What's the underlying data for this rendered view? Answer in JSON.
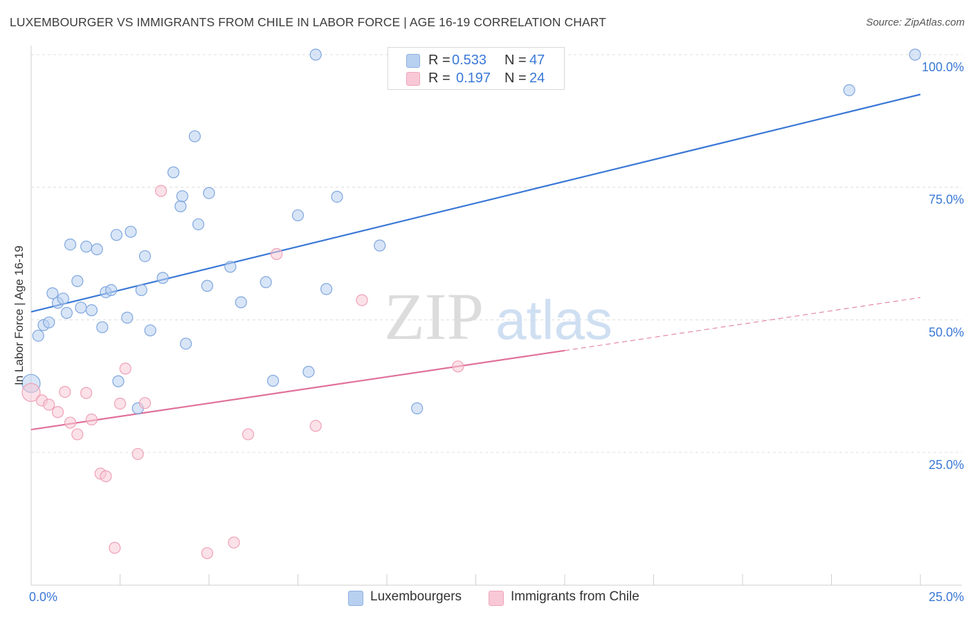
{
  "header": {
    "title": "LUXEMBOURGER VS IMMIGRANTS FROM CHILE IN LABOR FORCE | AGE 16-19 CORRELATION CHART",
    "source": "Source: ZipAtlas.com"
  },
  "watermark": {
    "zip": "ZIP",
    "atlas": "atlas"
  },
  "legend_top": {
    "rows": [
      {
        "r_label": "R =",
        "r_value": "0.533",
        "n_label": "N =",
        "n_value": "47",
        "color": "#b8d0f0",
        "border": "#8fb0e0"
      },
      {
        "r_label": "R =",
        "r_value": "0.197",
        "n_label": "N =",
        "n_value": "24",
        "color": "#f8c8d6",
        "border": "#eea6ba"
      }
    ]
  },
  "legend_bottom": {
    "items": [
      {
        "label": "Luxembourgers",
        "color": "#b8d0f0",
        "border": "#8fb0e0"
      },
      {
        "label": "Immigrants from Chile",
        "color": "#f8c8d6",
        "border": "#eea6ba"
      }
    ]
  },
  "chart_data": {
    "type": "scatter",
    "title": "LUXEMBOURGER VS IMMIGRANTS FROM CHILE IN LABOR FORCE | AGE 16-19 CORRELATION CHART",
    "xlabel": "",
    "ylabel": "In Labor Force | Age 16-19",
    "xlim": [
      0,
      25
    ],
    "ylim": [
      0,
      103
    ],
    "x_tick_labels": {
      "min": "0.0%",
      "max": "25.0%"
    },
    "y_ticks": [
      {
        "value": 25,
        "label": "25.0%"
      },
      {
        "value": 50,
        "label": "50.0%"
      },
      {
        "value": 75,
        "label": "75.0%"
      },
      {
        "value": 100,
        "label": "100.0%"
      }
    ],
    "colors": {
      "blue_line": "#3a78d6",
      "pink_line": "#e0709a",
      "tick_label": "#3a78d6",
      "grid": "#dcdcdc"
    },
    "series": [
      {
        "name": "Luxembourgers",
        "r": 0.533,
        "n": 47,
        "points": [
          [
            0.0,
            38.0
          ],
          [
            0.2,
            47.0
          ],
          [
            0.35,
            49.0
          ],
          [
            0.5,
            49.5
          ],
          [
            0.6,
            55.0
          ],
          [
            0.75,
            53.2
          ],
          [
            0.9,
            54.0
          ],
          [
            1.0,
            51.3
          ],
          [
            1.1,
            64.2
          ],
          [
            1.3,
            57.3
          ],
          [
            1.4,
            52.3
          ],
          [
            1.55,
            63.8
          ],
          [
            1.7,
            51.8
          ],
          [
            1.85,
            63.3
          ],
          [
            2.0,
            48.6
          ],
          [
            2.1,
            55.2
          ],
          [
            2.25,
            55.6
          ],
          [
            2.4,
            66.0
          ],
          [
            2.45,
            38.4
          ],
          [
            2.7,
            50.4
          ],
          [
            2.8,
            66.6
          ],
          [
            3.0,
            33.3
          ],
          [
            3.1,
            55.6
          ],
          [
            3.2,
            62.0
          ],
          [
            3.35,
            48.0
          ],
          [
            3.7,
            57.9
          ],
          [
            4.0,
            77.8
          ],
          [
            4.2,
            71.4
          ],
          [
            4.25,
            73.3
          ],
          [
            4.35,
            45.5
          ],
          [
            4.6,
            84.6
          ],
          [
            4.7,
            68.0
          ],
          [
            4.95,
            56.4
          ],
          [
            5.0,
            73.9
          ],
          [
            5.6,
            60.0
          ],
          [
            5.9,
            53.3
          ],
          [
            6.6,
            57.1
          ],
          [
            6.8,
            38.5
          ],
          [
            7.5,
            69.7
          ],
          [
            7.8,
            40.2
          ],
          [
            8.0,
            100.0
          ],
          [
            8.3,
            55.8
          ],
          [
            8.6,
            73.2
          ],
          [
            9.8,
            64.0
          ],
          [
            10.85,
            33.3
          ],
          [
            23.0,
            93.3
          ],
          [
            24.85,
            100.0
          ]
        ]
      },
      {
        "name": "Immigrants from Chile",
        "r": 0.197,
        "n": 24,
        "points": [
          [
            0.0,
            36.3
          ],
          [
            0.3,
            34.8
          ],
          [
            0.5,
            34.0
          ],
          [
            0.75,
            32.6
          ],
          [
            0.95,
            36.4
          ],
          [
            1.1,
            30.6
          ],
          [
            1.3,
            28.4
          ],
          [
            1.55,
            36.2
          ],
          [
            1.7,
            31.2
          ],
          [
            1.95,
            21.0
          ],
          [
            2.1,
            20.5
          ],
          [
            2.35,
            7.0
          ],
          [
            2.5,
            34.2
          ],
          [
            2.65,
            40.8
          ],
          [
            3.0,
            24.7
          ],
          [
            3.2,
            34.3
          ],
          [
            3.65,
            74.3
          ],
          [
            4.95,
            6.0
          ],
          [
            5.7,
            8.0
          ],
          [
            6.1,
            28.4
          ],
          [
            6.9,
            62.4
          ],
          [
            8.0,
            30.0
          ],
          [
            9.3,
            53.7
          ],
          [
            12.0,
            41.2
          ]
        ]
      }
    ],
    "trend_lines": [
      {
        "series": "Luxembourgers",
        "x": [
          0,
          25
        ],
        "y": [
          51.5,
          92.5
        ],
        "style": "solid"
      },
      {
        "series": "Immigrants from Chile",
        "x": [
          0,
          15
        ],
        "y": [
          29.3,
          44.2
        ],
        "style": "solid"
      },
      {
        "series": "Immigrants from Chile",
        "x": [
          15,
          25
        ],
        "y": [
          44.2,
          54.2
        ],
        "style": "dashed"
      }
    ]
  }
}
